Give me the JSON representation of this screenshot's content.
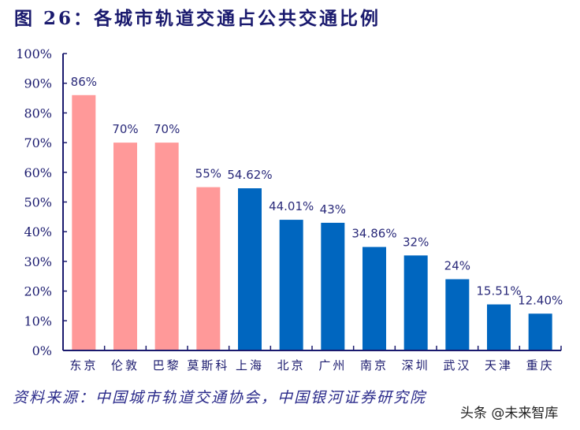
{
  "title": "图 26：各城市轨道交通占公共交通比例",
  "source": "资料来源：中国城市轨道交通协会，中国银河证券研究院",
  "watermark": "头条 @未来智库",
  "colors": {
    "foreign": "#ff9999",
    "domestic": "#0066bf",
    "axis": "#1a1a6e",
    "label": "#2a2a7a"
  },
  "chart_data": {
    "type": "bar",
    "title": "各城市轨道交通占公共交通比例",
    "xlabel": "",
    "ylabel": "",
    "ylim": [
      0,
      100
    ],
    "yticks": [
      "0%",
      "10%",
      "20%",
      "30%",
      "40%",
      "50%",
      "60%",
      "70%",
      "80%",
      "90%",
      "100%"
    ],
    "grid": false,
    "legend": null,
    "categories": [
      "东京",
      "伦敦",
      "巴黎",
      "莫斯科",
      "上海",
      "北京",
      "广州",
      "南京",
      "深圳",
      "武汉",
      "天津",
      "重庆"
    ],
    "values": [
      86,
      70,
      70,
      55,
      54.62,
      44.01,
      43,
      34.86,
      32,
      24,
      15.51,
      12.4
    ],
    "data_labels": [
      "86%",
      "70%",
      "70%",
      "55%",
      "54.62%",
      "44.01%",
      "43%",
      "34.86%",
      "32%",
      "24%",
      "15.51%",
      "12.40%"
    ],
    "bar_groups": [
      "foreign",
      "foreign",
      "foreign",
      "foreign",
      "domestic",
      "domestic",
      "domestic",
      "domestic",
      "domestic",
      "domestic",
      "domestic",
      "domestic"
    ]
  }
}
